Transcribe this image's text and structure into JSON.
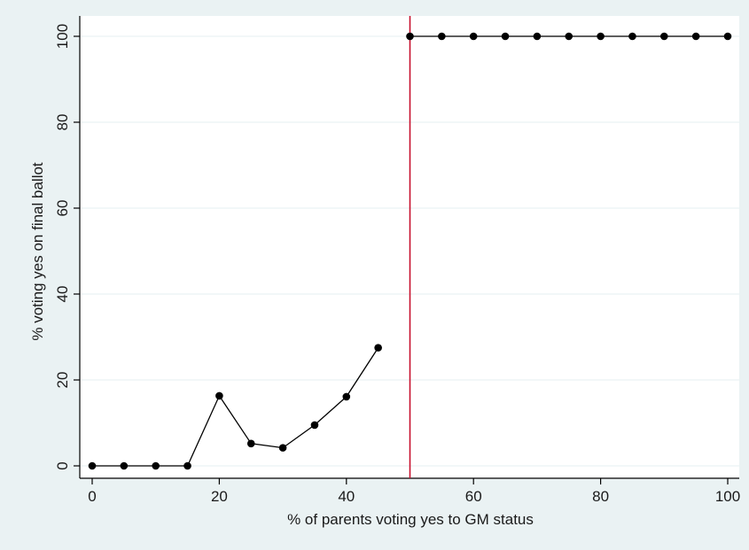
{
  "chart_data": {
    "type": "line",
    "title": "",
    "xlabel": "% of parents voting yes to GM status",
    "ylabel": "% voting yes on final ballot",
    "xlim": [
      0,
      100
    ],
    "ylim": [
      0,
      100
    ],
    "xticks": [
      "0",
      "20",
      "40",
      "60",
      "80",
      "100"
    ],
    "yticks": [
      "0",
      "20",
      "40",
      "60",
      "80",
      "100"
    ],
    "grid": true,
    "cutoff_line": {
      "x": 50,
      "color": "#c8102e"
    },
    "series": [
      {
        "x": [
          0,
          5,
          10,
          15,
          20,
          25,
          30,
          35,
          40,
          45
        ],
        "y": [
          0,
          0,
          0,
          0,
          16.3,
          5.2,
          4.2,
          9.5,
          16.1,
          27.5
        ]
      },
      {
        "x": [
          50,
          55,
          60,
          65,
          70,
          75,
          80,
          85,
          90,
          95,
          100
        ],
        "y": [
          100,
          100,
          100,
          100,
          100,
          100,
          100,
          100,
          100,
          100,
          100
        ]
      }
    ],
    "colors": {
      "background": "#eaf2f3",
      "plot_background": "#ffffff",
      "grid": "#eaf2f3",
      "series": "#000000"
    }
  }
}
